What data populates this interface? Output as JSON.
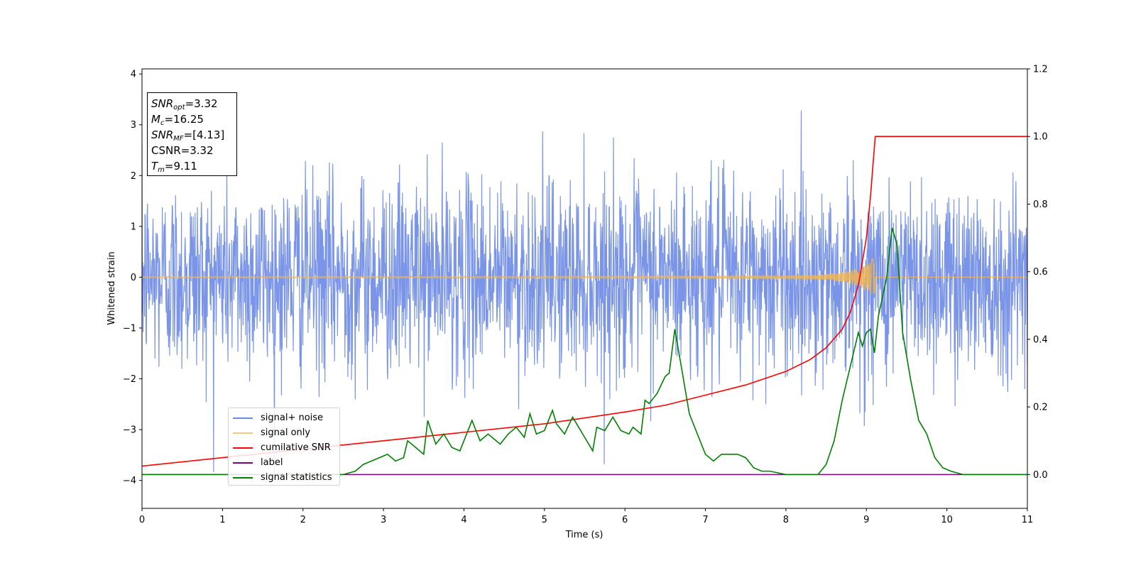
{
  "chart_data": {
    "type": "line",
    "xlabel": "Time (s)",
    "ylabel": "Whitened strain",
    "xlim": [
      0,
      11
    ],
    "ylim_left": [
      -4.55,
      4.1
    ],
    "ylim_right": [
      -0.1,
      1.2
    ],
    "x_ticks": [
      "0",
      "1",
      "2",
      "3",
      "4",
      "5",
      "6",
      "7",
      "8",
      "9",
      "10",
      "11"
    ],
    "y_ticks_left": [
      "4",
      "3",
      "2",
      "1",
      "0",
      "−1",
      "−2",
      "−3",
      "−4"
    ],
    "y_ticks_right": [
      "1.2",
      "1.0",
      "0.8",
      "0.6",
      "0.4",
      "0.2",
      "0.0"
    ],
    "grid": false,
    "legend_position": "lower-left",
    "colors": {
      "noise": "#6b8ae6",
      "signal": "#f5b54a",
      "cumulative": "#ff0000",
      "label": "#800080",
      "statistics": "#008000"
    },
    "merger_time": 9.11,
    "series": [
      {
        "name": "signal+ noise",
        "axis": "left",
        "description_only": false
      },
      {
        "name": "signal only",
        "axis": "left"
      },
      {
        "name": "cumilative SNR",
        "axis": "right",
        "x": [
          0,
          1,
          2,
          3,
          4,
          5,
          6,
          6.5,
          7,
          7.5,
          8,
          8.3,
          8.5,
          8.7,
          8.8,
          8.9,
          9.0,
          9.05,
          9.11,
          9.12,
          11
        ],
        "y": [
          0.025,
          0.05,
          0.075,
          0.1,
          0.125,
          0.15,
          0.185,
          0.205,
          0.235,
          0.265,
          0.305,
          0.34,
          0.375,
          0.43,
          0.48,
          0.56,
          0.7,
          0.82,
          1.0,
          1.0,
          1.0
        ]
      },
      {
        "name": "label",
        "axis": "right",
        "x": [
          0,
          11
        ],
        "y": [
          0.0,
          0.0
        ]
      },
      {
        "name": "signal statistics",
        "axis": "right",
        "x": [
          0,
          1.5,
          2.5,
          2.65,
          2.75,
          2.85,
          2.95,
          3.05,
          3.15,
          3.25,
          3.3,
          3.4,
          3.5,
          3.55,
          3.65,
          3.75,
          3.85,
          3.95,
          4.05,
          4.1,
          4.2,
          4.3,
          4.35,
          4.45,
          4.55,
          4.65,
          4.75,
          4.82,
          4.9,
          5.0,
          5.1,
          5.15,
          5.25,
          5.35,
          5.4,
          5.5,
          5.6,
          5.65,
          5.75,
          5.85,
          5.95,
          6.05,
          6.1,
          6.2,
          6.25,
          6.3,
          6.4,
          6.5,
          6.55,
          6.62,
          6.7,
          6.8,
          6.9,
          7.0,
          7.1,
          7.2,
          7.3,
          7.4,
          7.5,
          7.6,
          7.7,
          7.8,
          8.0,
          8.2,
          8.4,
          8.5,
          8.6,
          8.7,
          8.8,
          8.9,
          8.95,
          9.0,
          9.05,
          9.1,
          9.15,
          9.25,
          9.32,
          9.38,
          9.45,
          9.55,
          9.65,
          9.75,
          9.85,
          9.95,
          10.05,
          10.2,
          10.5,
          11
        ],
        "y": [
          0.0,
          0.0,
          0.0,
          0.01,
          0.03,
          0.04,
          0.05,
          0.06,
          0.04,
          0.05,
          0.1,
          0.08,
          0.06,
          0.16,
          0.09,
          0.12,
          0.08,
          0.07,
          0.13,
          0.16,
          0.1,
          0.12,
          0.11,
          0.09,
          0.12,
          0.14,
          0.11,
          0.18,
          0.12,
          0.13,
          0.19,
          0.15,
          0.12,
          0.17,
          0.15,
          0.11,
          0.07,
          0.14,
          0.13,
          0.17,
          0.13,
          0.12,
          0.14,
          0.12,
          0.22,
          0.21,
          0.24,
          0.29,
          0.3,
          0.43,
          0.32,
          0.18,
          0.12,
          0.06,
          0.04,
          0.06,
          0.06,
          0.06,
          0.05,
          0.02,
          0.01,
          0.01,
          0.0,
          0.0,
          0.0,
          0.03,
          0.1,
          0.22,
          0.32,
          0.42,
          0.38,
          0.42,
          0.43,
          0.36,
          0.47,
          0.58,
          0.73,
          0.68,
          0.42,
          0.28,
          0.16,
          0.12,
          0.05,
          0.02,
          0.01,
          0.0,
          0.0,
          0.0
        ]
      }
    ]
  },
  "info_box": {
    "snr_opt": "=3.32",
    "mc": "=16.25",
    "snr_mf": "=[4.13]",
    "csnr": "CSNR=3.32",
    "tm": "=9.11"
  },
  "legend": {
    "items": [
      {
        "label": "signal+ noise",
        "color": "#6b8ae6"
      },
      {
        "label": "signal only",
        "color": "#f5c97a"
      },
      {
        "label": "cumilative SNR",
        "color": "#ff0000"
      },
      {
        "label": "label",
        "color": "#800080"
      },
      {
        "label": "signal statistics",
        "color": "#008000"
      }
    ]
  }
}
